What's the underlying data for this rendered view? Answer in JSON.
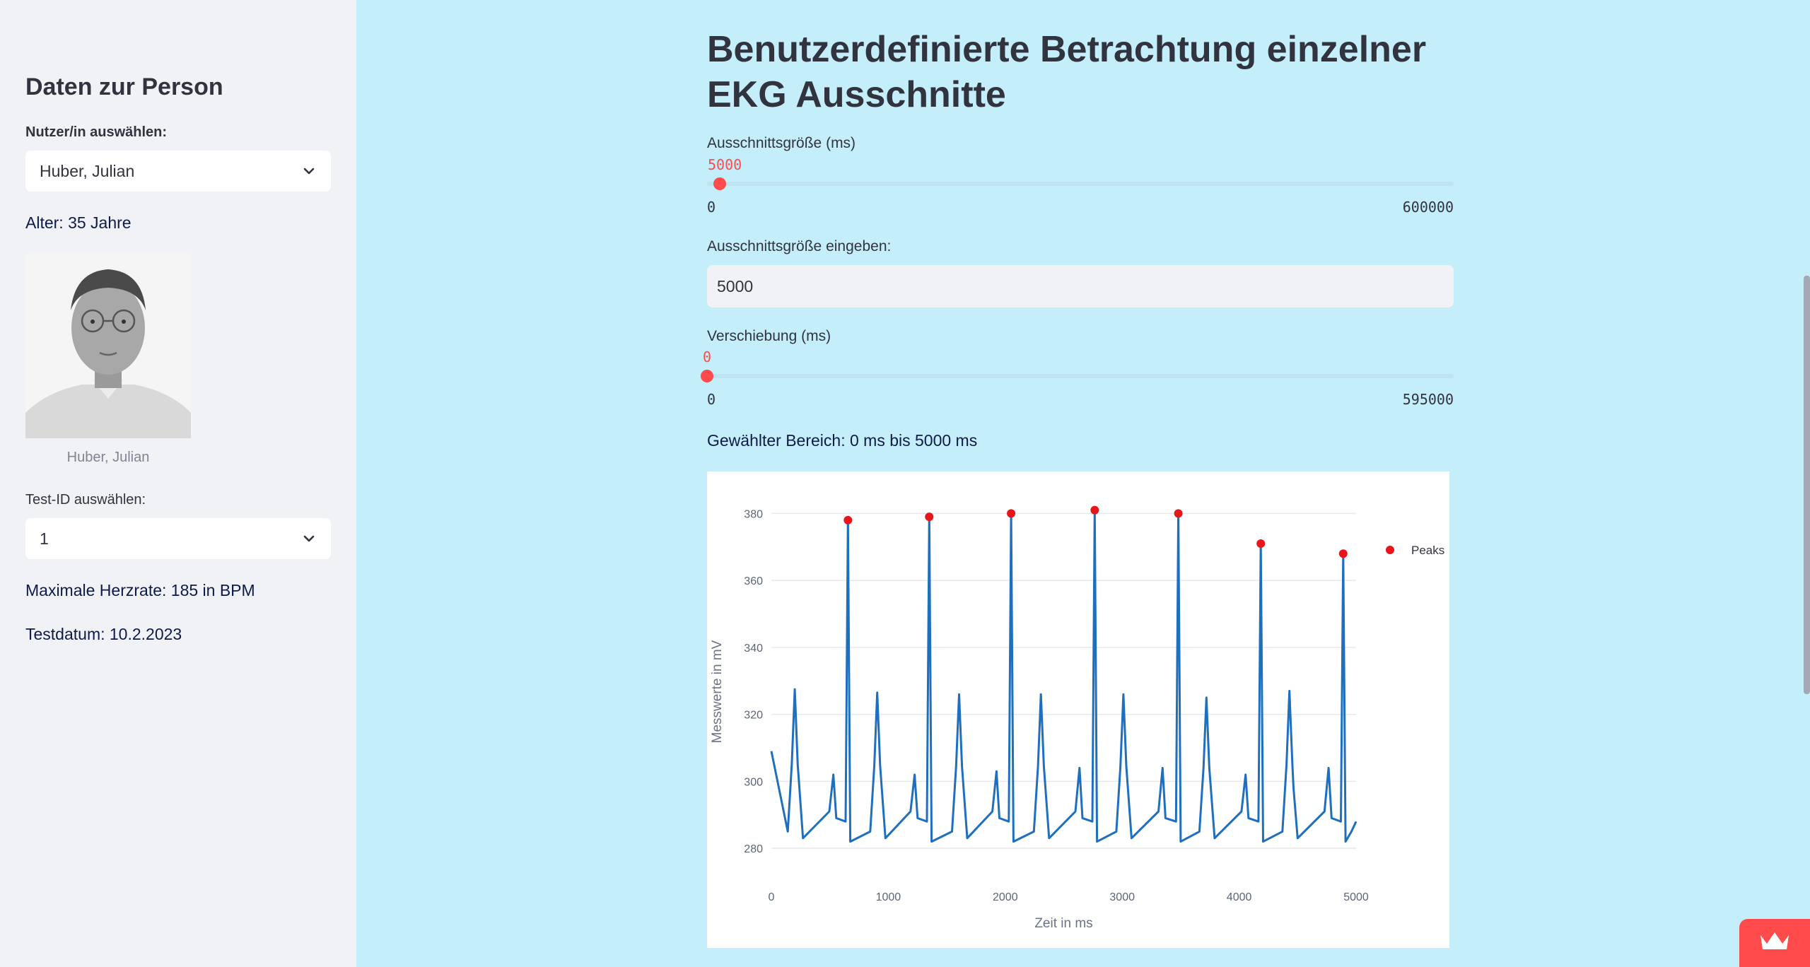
{
  "sidebar": {
    "title": "Daten zur Person",
    "user_select": {
      "label": "Nutzer/in auswählen:",
      "value": "Huber, Julian"
    },
    "age_text": "Alter: 35 Jahre",
    "photo_caption": "Huber, Julian",
    "test_select": {
      "label": "Test-ID auswählen:",
      "value": "1"
    },
    "max_hr_text": "Maximale Herzrate: 185 in BPM",
    "test_date_text": "Testdatum: 10.2.2023"
  },
  "main": {
    "title": "Benutzerdefinierte Betrachtung einzelner EKG Ausschnitte",
    "window_slider": {
      "label": "Ausschnittsgröße (ms)",
      "value": "5000",
      "min": "0",
      "max": "600000",
      "fraction": 0.00833
    },
    "window_input": {
      "label": "Ausschnittsgröße eingeben:",
      "value": "5000"
    },
    "shift_slider": {
      "label": "Verschiebung (ms)",
      "value": "0",
      "min": "0",
      "max": "595000",
      "fraction": 0
    },
    "range_text": "Gewählter Bereich: 0 ms bis 5000 ms"
  },
  "chart_data": {
    "type": "line",
    "xlabel": "Zeit in ms",
    "ylabel": "Messwerte in mV",
    "xlim": [
      0,
      5000
    ],
    "ylim": [
      276,
      386
    ],
    "xticks": [
      "0",
      "1000",
      "2000",
      "3000",
      "4000",
      "5000"
    ],
    "yticks": [
      "280",
      "300",
      "320",
      "340",
      "360",
      "380"
    ],
    "grid": true,
    "legend": {
      "position": "top-right",
      "entries": [
        "Peaks"
      ]
    },
    "colors": {
      "line": "#1f6fbf",
      "peaks": "#e8151b"
    },
    "peaks": [
      {
        "x": 655,
        "y": 378
      },
      {
        "x": 1350,
        "y": 379
      },
      {
        "x": 2050,
        "y": 380
      },
      {
        "x": 2765,
        "y": 381
      },
      {
        "x": 3480,
        "y": 380
      },
      {
        "x": 4185,
        "y": 371
      },
      {
        "x": 4890,
        "y": 368
      }
    ],
    "t_waves": [
      {
        "x": 200,
        "y": 327.5
      },
      {
        "x": 905,
        "y": 326.5
      },
      {
        "x": 1605,
        "y": 326
      },
      {
        "x": 2305,
        "y": 326
      },
      {
        "x": 3010,
        "y": 326
      },
      {
        "x": 3720,
        "y": 325
      },
      {
        "x": 4430,
        "y": 327
      }
    ],
    "p_waves": [
      {
        "x": 530,
        "y": 302
      },
      {
        "x": 1225,
        "y": 302
      },
      {
        "x": 1925,
        "y": 303
      },
      {
        "x": 2635,
        "y": 304
      },
      {
        "x": 3345,
        "y": 304
      },
      {
        "x": 4055,
        "y": 302
      },
      {
        "x": 4765,
        "y": 304
      }
    ],
    "start": {
      "x": 0,
      "y": 309
    },
    "end": {
      "x": 5000,
      "y": 288
    },
    "baseline": 283
  },
  "badge_icon": "crown-icon"
}
